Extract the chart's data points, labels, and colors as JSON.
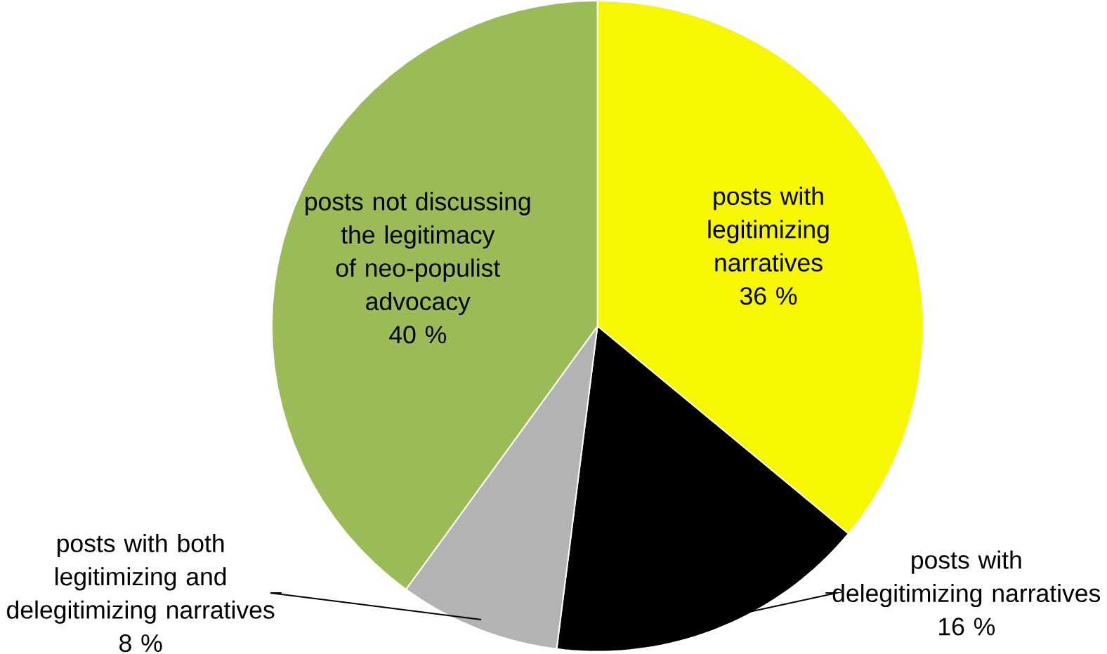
{
  "chart_data": {
    "type": "pie",
    "categories": [
      "posts with legitimizing narratives",
      "posts with delegitimizing narratives",
      "posts with both legitimizing and delegitimizing narratives",
      "posts not discussing the legitimacy of neo-populist advocacy"
    ],
    "values": [
      36,
      16,
      8,
      40
    ],
    "value_labels": [
      "36 %",
      "16 %",
      "8 %",
      "40 %"
    ],
    "colors": [
      "#f7f700",
      "#000000",
      "#b3b3b3",
      "#9bbb59"
    ]
  }
}
